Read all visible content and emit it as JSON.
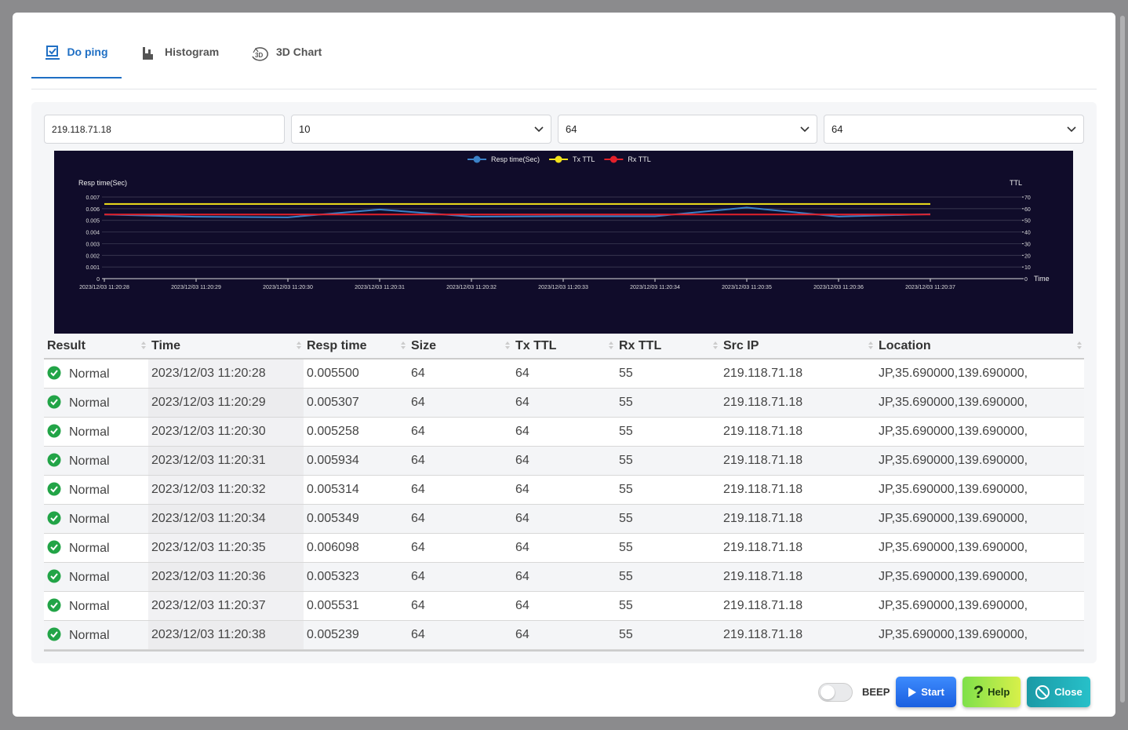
{
  "tabs": [
    "Do ping",
    "Histogram",
    "3D Chart"
  ],
  "inputs": {
    "target": "219.118.71.18",
    "count": "10",
    "tx_ttl": "64",
    "size": "64"
  },
  "chart_data": {
    "type": "line",
    "x_label": "Time",
    "y_label": "Resp time(Sec)",
    "y2_label": "TTL",
    "categories": [
      "2023/12/03 11:20:28",
      "2023/12/03 11:20:29",
      "2023/12/03 11:20:30",
      "2023/12/03 11:20:31",
      "2023/12/03 11:20:32",
      "2023/12/03 11:20:33",
      "2023/12/03 11:20:34",
      "2023/12/03 11:20:35",
      "2023/12/03 11:20:36",
      "2023/12/03 11:20:37"
    ],
    "ylim": [
      0,
      0.007
    ],
    "yticks": [
      0,
      0.001,
      0.002,
      0.003,
      0.004,
      0.005,
      0.006,
      0.007
    ],
    "y2lim": [
      0,
      70
    ],
    "y2ticks": [
      0,
      10,
      20,
      30,
      40,
      50,
      60,
      70
    ],
    "grid": true,
    "legend": "top",
    "series": [
      {
        "name": "Resp time(Sec)",
        "color": "#3b82c8",
        "values": [
          0.0055,
          0.005307,
          0.005258,
          0.005934,
          0.005314,
          0.005349,
          0.005349,
          0.006098,
          0.005323,
          0.005531
        ]
      },
      {
        "name": "Tx TTL",
        "color": "#f2e21b",
        "axis": "y2",
        "values": [
          64,
          64,
          64,
          64,
          64,
          64,
          64,
          64,
          64,
          64
        ]
      },
      {
        "name": "Rx TTL",
        "color": "#e3202a",
        "axis": "y2",
        "values": [
          55,
          55,
          55,
          55,
          55,
          55,
          55,
          55,
          55,
          55
        ]
      }
    ]
  },
  "table": {
    "columns": [
      "Result",
      "Time",
      "Resp time",
      "Size",
      "Tx TTL",
      "Rx TTL",
      "Src IP",
      "Location"
    ],
    "rows": [
      [
        "Normal",
        "2023/12/03 11:20:28",
        "0.005500",
        "64",
        "64",
        "55",
        "219.118.71.18",
        "JP,35.690000,139.690000,"
      ],
      [
        "Normal",
        "2023/12/03 11:20:29",
        "0.005307",
        "64",
        "64",
        "55",
        "219.118.71.18",
        "JP,35.690000,139.690000,"
      ],
      [
        "Normal",
        "2023/12/03 11:20:30",
        "0.005258",
        "64",
        "64",
        "55",
        "219.118.71.18",
        "JP,35.690000,139.690000,"
      ],
      [
        "Normal",
        "2023/12/03 11:20:31",
        "0.005934",
        "64",
        "64",
        "55",
        "219.118.71.18",
        "JP,35.690000,139.690000,"
      ],
      [
        "Normal",
        "2023/12/03 11:20:32",
        "0.005314",
        "64",
        "64",
        "55",
        "219.118.71.18",
        "JP,35.690000,139.690000,"
      ],
      [
        "Normal",
        "2023/12/03 11:20:34",
        "0.005349",
        "64",
        "64",
        "55",
        "219.118.71.18",
        "JP,35.690000,139.690000,"
      ],
      [
        "Normal",
        "2023/12/03 11:20:35",
        "0.006098",
        "64",
        "64",
        "55",
        "219.118.71.18",
        "JP,35.690000,139.690000,"
      ],
      [
        "Normal",
        "2023/12/03 11:20:36",
        "0.005323",
        "64",
        "64",
        "55",
        "219.118.71.18",
        "JP,35.690000,139.690000,"
      ],
      [
        "Normal",
        "2023/12/03 11:20:37",
        "0.005531",
        "64",
        "64",
        "55",
        "219.118.71.18",
        "JP,35.690000,139.690000,"
      ],
      [
        "Normal",
        "2023/12/03 11:20:38",
        "0.005239",
        "64",
        "64",
        "55",
        "219.118.71.18",
        "JP,35.690000,139.690000,"
      ]
    ]
  },
  "beep": "BEEP",
  "buttons": [
    "Start",
    "Help",
    "Close"
  ]
}
